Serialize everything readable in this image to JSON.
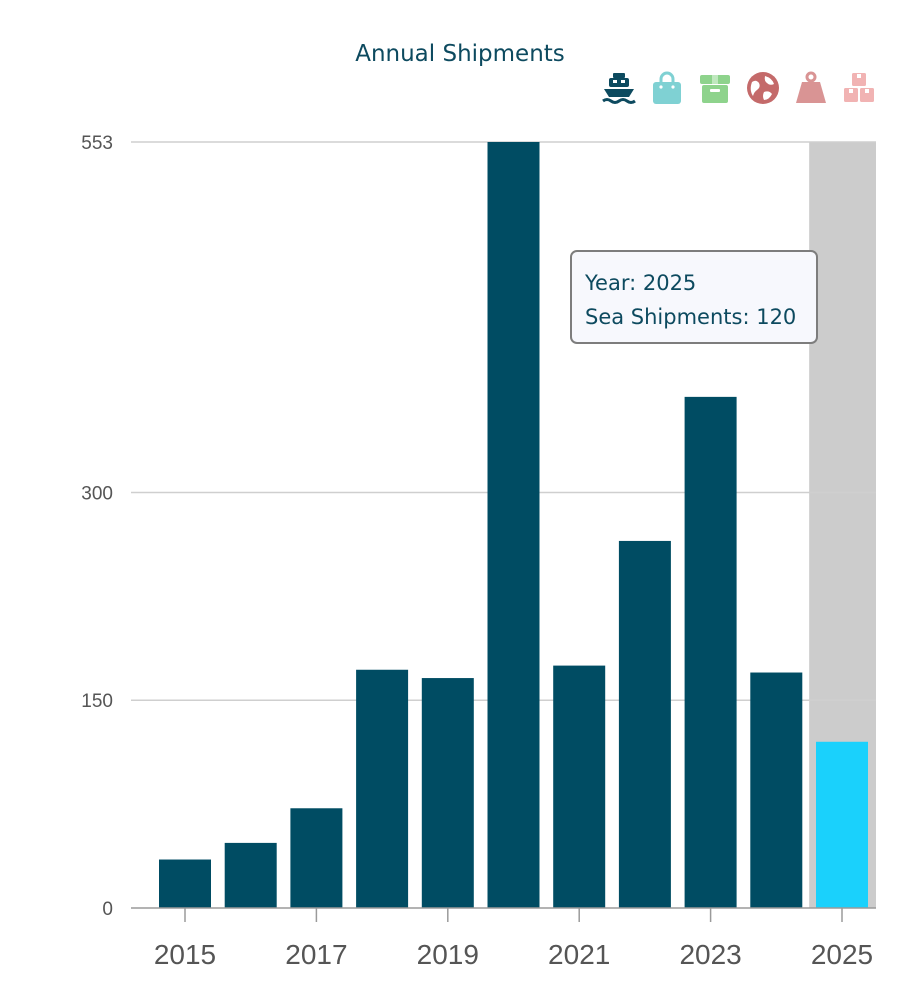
{
  "chart_data": {
    "type": "bar",
    "title": "Annual Shipments",
    "xlabel": "",
    "ylabel": "",
    "categories": [
      "2015",
      "2016",
      "2017",
      "2018",
      "2019",
      "2020",
      "2021",
      "2022",
      "2023",
      "2024",
      "2025"
    ],
    "x_tick_labels": [
      "2015",
      "2017",
      "2019",
      "2021",
      "2023",
      "2025"
    ],
    "y_ticks": [
      0,
      150,
      300,
      553
    ],
    "ylim": [
      0,
      553
    ],
    "series": [
      {
        "values": [
          35,
          47,
          72,
          172,
          166,
          553,
          175,
          265,
          369,
          170,
          120
        ]
      }
    ],
    "highlighted_category": "2025",
    "grid": true,
    "colors": {
      "bar": "#004c63",
      "highlight_bar": "#1ad1fc",
      "highlight_band": "#cccccc",
      "title": "#0d4a5f"
    }
  },
  "tooltip": {
    "year_line": "Year: 2025",
    "value_line": "Sea Shipments: 120"
  },
  "legend_icons": [
    {
      "name": "ship-icon",
      "color": "#0d4a5f"
    },
    {
      "name": "shopping-bag-icon",
      "color": "#7fd1d3"
    },
    {
      "name": "package-box-icon",
      "color": "#8ed38c"
    },
    {
      "name": "globe-icon",
      "color": "#c46a6a"
    },
    {
      "name": "weight-icon",
      "color": "#d99494"
    },
    {
      "name": "cubes-icon",
      "color": "#f1b3b3"
    }
  ]
}
